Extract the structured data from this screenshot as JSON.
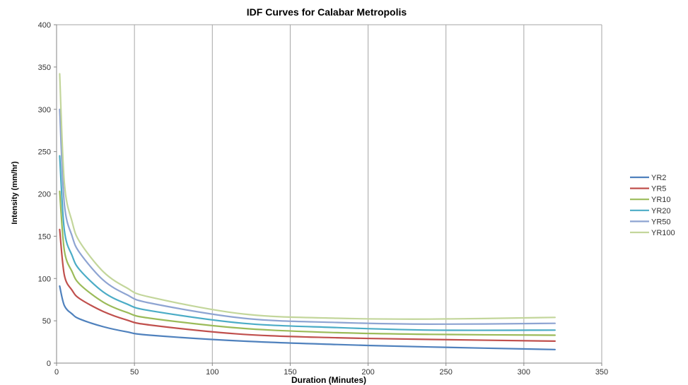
{
  "chart_data": {
    "type": "line",
    "title": "IDF Curves for Calabar Metropolis",
    "xlabel": "Duration (Minutes)",
    "ylabel": "Intensity (mm/hr)",
    "xlim": [
      0,
      350
    ],
    "ylim": [
      0,
      400
    ],
    "xticks": [
      0,
      50,
      100,
      150,
      200,
      250,
      300,
      350
    ],
    "yticks": [
      0,
      50,
      100,
      150,
      200,
      250,
      300,
      350,
      400
    ],
    "grid": "vertical",
    "legend_position": "right",
    "x": [
      2,
      5,
      10,
      15,
      30,
      45,
      60,
      120,
      180,
      240,
      320
    ],
    "series": [
      {
        "name": "YR2",
        "color": "#4F81BD",
        "values": [
          91,
          68,
          58,
          52,
          43,
          37,
          33,
          26,
          22,
          19,
          16
        ]
      },
      {
        "name": "YR5",
        "color": "#C0504D",
        "values": [
          158,
          104,
          86,
          76,
          61,
          51,
          45,
          34,
          30,
          28,
          26
        ]
      },
      {
        "name": "YR10",
        "color": "#9BBB59",
        "values": [
          203,
          133,
          108,
          93,
          72,
          60,
          53,
          41,
          36,
          34,
          33
        ]
      },
      {
        "name": "YR20",
        "color": "#4BACC6",
        "values": [
          245,
          157,
          127,
          110,
          84,
          70,
          62,
          47,
          42,
          39,
          39
        ]
      },
      {
        "name": "YR50",
        "color": "#8EA4D2",
        "values": [
          300,
          188,
          150,
          130,
          98,
          81,
          71,
          53,
          48,
          46,
          47
        ]
      },
      {
        "name": "YR100",
        "color": "#C3D69B",
        "values": [
          342,
          213,
          167,
          143,
          108,
          89,
          78,
          58,
          53,
          52,
          54
        ]
      }
    ]
  }
}
